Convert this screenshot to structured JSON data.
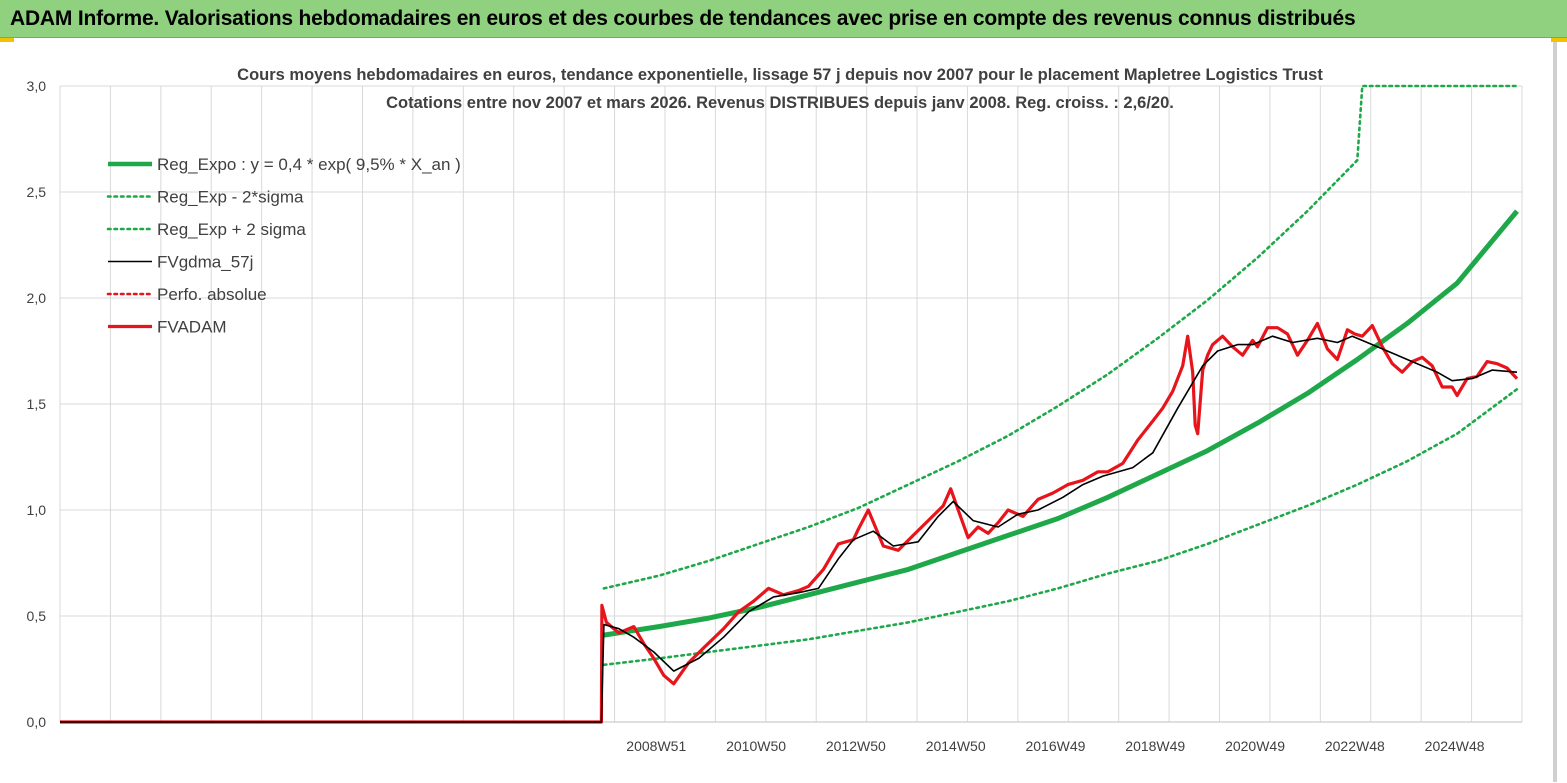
{
  "banner": {
    "title": "ADAM Informe. Valorisations hebdomadaires en euros et des courbes de tendances avec prise en compte des revenus connus distribués"
  },
  "colors": {
    "banner_bg": "#8fd17f",
    "reg_green": "#1fa84a",
    "band_green": "#1fa84a",
    "fvgdma_black": "#000000",
    "fvadam_red": "#e8141b",
    "perfo_red": "#e8141b",
    "grid": "#d9d9d9"
  },
  "chart_data": {
    "type": "line",
    "title": "Cours moyens hebdomadaires en euros, tendance exponentielle, lissage 57 j depuis nov 2007 pour le placement Mapletree Logistics Trust",
    "subtitle": "Cotations entre nov 2007 et mars 2026. Revenus DISTRIBUES depuis janv 2008. Reg. croiss. : 2,6/20.",
    "xlabel": "",
    "ylabel": "",
    "ylim": [
      0,
      3.0
    ],
    "yticks": [
      "0,0",
      "0,5",
      "1,0",
      "1,5",
      "2,0",
      "2,5",
      "3,0"
    ],
    "xlim": [
      1997.0,
      2026.3
    ],
    "xticks": [
      {
        "label": "2008W51",
        "x": 2008.95
      },
      {
        "label": "2010W50",
        "x": 2010.95
      },
      {
        "label": "2012W50",
        "x": 2012.95
      },
      {
        "label": "2014W50",
        "x": 2014.95
      },
      {
        "label": "2016W49",
        "x": 2016.95
      },
      {
        "label": "2018W49",
        "x": 2018.95
      },
      {
        "label": "2020W49",
        "x": 2020.95
      },
      {
        "label": "2022W48",
        "x": 2022.95
      },
      {
        "label": "2024W48",
        "x": 2024.95
      }
    ],
    "grid": true,
    "legend_position": "top-left",
    "series": [
      {
        "name": "Reg_Expo : y = 0,4 * exp( 9,5% * X_an )",
        "style": "solid-thick",
        "color": "#1fa84a",
        "x": [
          2007.9,
          2009.0,
          2010.0,
          2011.0,
          2012.0,
          2013.0,
          2014.0,
          2015.0,
          2016.0,
          2017.0,
          2018.0,
          2019.0,
          2020.0,
          2021.0,
          2022.0,
          2023.0,
          2024.0,
          2025.0,
          2026.2
        ],
        "y": [
          0.41,
          0.45,
          0.49,
          0.54,
          0.6,
          0.66,
          0.72,
          0.8,
          0.88,
          0.96,
          1.06,
          1.17,
          1.28,
          1.41,
          1.55,
          1.71,
          1.88,
          2.07,
          2.41
        ]
      },
      {
        "name": "Reg_Exp - 2*sigma",
        "style": "dotted",
        "color": "#1fa84a",
        "x": [
          2007.9,
          2009.0,
          2010.0,
          2011.0,
          2012.0,
          2013.0,
          2014.0,
          2015.0,
          2016.0,
          2017.0,
          2018.0,
          2019.0,
          2020.0,
          2021.0,
          2022.0,
          2023.0,
          2024.0,
          2025.0,
          2026.2
        ],
        "y": [
          0.27,
          0.3,
          0.33,
          0.36,
          0.39,
          0.43,
          0.47,
          0.52,
          0.57,
          0.63,
          0.7,
          0.76,
          0.84,
          0.93,
          1.02,
          1.12,
          1.23,
          1.36,
          1.57
        ]
      },
      {
        "name": "Reg_Exp + 2 sigma",
        "style": "dotted",
        "color": "#1fa84a",
        "x": [
          2007.9,
          2009.0,
          2010.0,
          2011.0,
          2012.0,
          2013.0,
          2014.0,
          2015.0,
          2016.0,
          2017.0,
          2018.0,
          2019.0,
          2020.0,
          2021.0,
          2022.0,
          2023.0,
          2023.1,
          2026.2
        ],
        "y": [
          0.63,
          0.69,
          0.76,
          0.84,
          0.92,
          1.01,
          1.12,
          1.23,
          1.35,
          1.49,
          1.64,
          1.81,
          1.99,
          2.19,
          2.41,
          2.65,
          3.0,
          3.0
        ]
      },
      {
        "name": "FVgdma_57j",
        "style": "solid-thin",
        "color": "#000000",
        "x": [
          1997.0,
          2007.85,
          2007.9,
          2008.2,
          2008.5,
          2008.9,
          2009.3,
          2009.8,
          2010.3,
          2010.8,
          2011.3,
          2011.8,
          2012.2,
          2012.6,
          2012.9,
          2013.3,
          2013.7,
          2014.2,
          2014.6,
          2014.9,
          2015.3,
          2015.8,
          2016.2,
          2016.6,
          2017.1,
          2017.5,
          2017.9,
          2018.5,
          2018.9,
          2019.4,
          2019.9,
          2020.2,
          2020.6,
          2020.9,
          2021.3,
          2021.7,
          2022.2,
          2022.6,
          2022.9,
          2023.3,
          2023.7,
          2024.1,
          2024.6,
          2024.9,
          2025.3,
          2025.7,
          2026.2
        ],
        "y": [
          0.0,
          0.0,
          0.46,
          0.44,
          0.4,
          0.33,
          0.24,
          0.3,
          0.4,
          0.52,
          0.59,
          0.61,
          0.63,
          0.77,
          0.86,
          0.9,
          0.83,
          0.85,
          0.97,
          1.04,
          0.95,
          0.92,
          0.98,
          1.0,
          1.06,
          1.12,
          1.16,
          1.2,
          1.27,
          1.48,
          1.68,
          1.75,
          1.78,
          1.78,
          1.82,
          1.79,
          1.81,
          1.79,
          1.82,
          1.78,
          1.74,
          1.7,
          1.65,
          1.61,
          1.62,
          1.66,
          1.65
        ]
      },
      {
        "name": "Perfo. absolue",
        "style": "dotted",
        "color": "#e8141b",
        "x": [],
        "y": []
      },
      {
        "name": "FVADAM",
        "style": "solid-thick",
        "color": "#e8141b",
        "x": [
          1997.0,
          2007.85,
          2007.86,
          2007.95,
          2008.2,
          2008.5,
          2008.7,
          2008.9,
          2009.1,
          2009.3,
          2009.6,
          2009.9,
          2010.3,
          2010.6,
          2010.9,
          2011.2,
          2011.5,
          2011.8,
          2012.0,
          2012.3,
          2012.6,
          2012.9,
          2013.0,
          2013.2,
          2013.5,
          2013.8,
          2014.1,
          2014.4,
          2014.7,
          2014.85,
          2015.0,
          2015.2,
          2015.4,
          2015.6,
          2015.8,
          2016.0,
          2016.3,
          2016.6,
          2016.9,
          2017.2,
          2017.5,
          2017.8,
          2018.0,
          2018.3,
          2018.6,
          2018.9,
          2019.1,
          2019.3,
          2019.5,
          2019.6,
          2019.7,
          2019.75,
          2019.8,
          2019.9,
          2020.0,
          2020.1,
          2020.3,
          2020.5,
          2020.7,
          2020.9,
          2021.0,
          2021.2,
          2021.4,
          2021.6,
          2021.8,
          2022.0,
          2022.2,
          2022.4,
          2022.6,
          2022.8,
          2022.95,
          2023.1,
          2023.3,
          2023.5,
          2023.7,
          2023.9,
          2024.1,
          2024.3,
          2024.5,
          2024.7,
          2024.9,
          2025.0,
          2025.2,
          2025.4,
          2025.6,
          2025.8,
          2026.0,
          2026.2
        ],
        "y": [
          0.0,
          0.0,
          0.55,
          0.47,
          0.42,
          0.45,
          0.37,
          0.3,
          0.22,
          0.18,
          0.28,
          0.35,
          0.44,
          0.52,
          0.57,
          0.63,
          0.6,
          0.62,
          0.64,
          0.72,
          0.84,
          0.86,
          0.91,
          1.0,
          0.83,
          0.81,
          0.88,
          0.95,
          1.02,
          1.1,
          1.0,
          0.87,
          0.92,
          0.89,
          0.94,
          1.0,
          0.97,
          1.05,
          1.08,
          1.12,
          1.14,
          1.18,
          1.18,
          1.22,
          1.33,
          1.42,
          1.48,
          1.56,
          1.68,
          1.82,
          1.65,
          1.4,
          1.36,
          1.66,
          1.73,
          1.78,
          1.82,
          1.77,
          1.73,
          1.8,
          1.77,
          1.86,
          1.86,
          1.83,
          1.73,
          1.8,
          1.88,
          1.76,
          1.71,
          1.85,
          1.83,
          1.82,
          1.87,
          1.77,
          1.69,
          1.65,
          1.7,
          1.72,
          1.68,
          1.58,
          1.58,
          1.54,
          1.62,
          1.63,
          1.7,
          1.69,
          1.67,
          1.62
        ]
      }
    ]
  }
}
